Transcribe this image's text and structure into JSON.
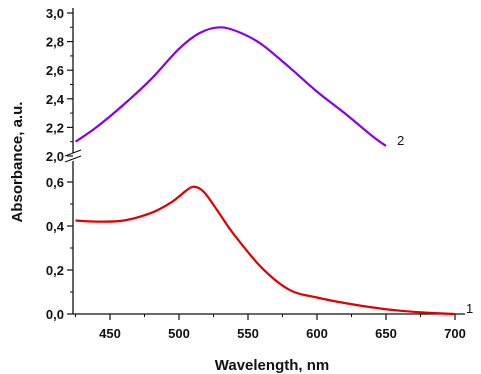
{
  "chart_data": {
    "type": "line",
    "title": "",
    "xlabel": "Wavelength, nm",
    "ylabel": "Absorbance, a.u.",
    "xlim": [
      425,
      705
    ],
    "axis_break": {
      "upper_ylim": [
        2.0,
        3.05
      ],
      "lower_ylim": [
        0.0,
        0.7
      ]
    },
    "x_ticks": [
      "450",
      "500",
      "550",
      "600",
      "650",
      "700"
    ],
    "y_ticks_upper": [
      "2,0",
      "2,2",
      "2,4",
      "2,6",
      "2,8",
      "3,0"
    ],
    "y_ticks_lower": [
      "0,0",
      "0,2",
      "0,4",
      "0,6"
    ],
    "grid": false,
    "series": [
      {
        "name": "1",
        "color": "#e00000",
        "panel": "lower",
        "x": [
          425,
          440,
          460,
          480,
          495,
          505,
          510,
          515,
          520,
          530,
          540,
          560,
          580,
          600,
          620,
          640,
          660,
          680,
          700
        ],
        "y": [
          0.425,
          0.42,
          0.425,
          0.46,
          0.51,
          0.56,
          0.578,
          0.57,
          0.54,
          0.45,
          0.36,
          0.21,
          0.11,
          0.075,
          0.05,
          0.03,
          0.015,
          0.006,
          0.0
        ]
      },
      {
        "name": "2",
        "color": "#8a00e6",
        "panel": "upper",
        "x": [
          425,
          440,
          460,
          480,
          500,
          515,
          530,
          545,
          560,
          580,
          600,
          620,
          640,
          650
        ],
        "y": [
          2.1,
          2.2,
          2.36,
          2.54,
          2.75,
          2.86,
          2.9,
          2.86,
          2.78,
          2.62,
          2.45,
          2.3,
          2.14,
          2.07
        ]
      }
    ]
  }
}
